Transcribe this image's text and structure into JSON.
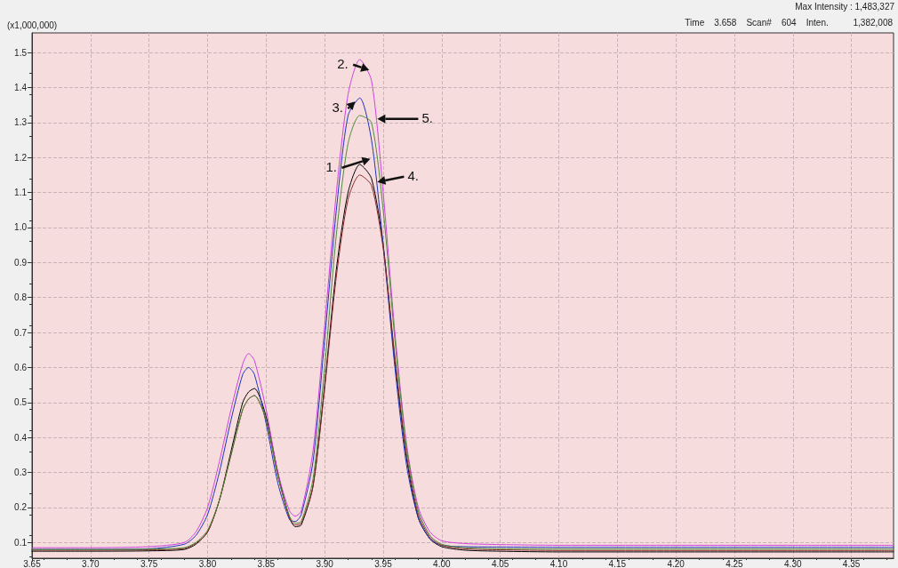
{
  "chart_data": {
    "type": "line",
    "ylabel": "(x1,000,000)",
    "x": [
      3.65,
      3.7,
      3.75,
      3.78,
      3.79,
      3.8,
      3.81,
      3.82,
      3.83,
      3.835,
      3.84,
      3.85,
      3.86,
      3.87,
      3.875,
      3.88,
      3.89,
      3.9,
      3.91,
      3.92,
      3.93,
      3.94,
      3.95,
      3.96,
      3.97,
      3.98,
      3.99,
      4.0,
      4.02,
      4.05,
      4.1,
      4.2,
      4.3,
      4.386
    ],
    "series": [
      {
        "color": "#000000",
        "values": [
          0.075,
          0.075,
          0.076,
          0.08,
          0.095,
          0.13,
          0.22,
          0.36,
          0.5,
          0.53,
          0.54,
          0.46,
          0.3,
          0.17,
          0.145,
          0.15,
          0.26,
          0.55,
          0.88,
          1.1,
          1.18,
          1.14,
          0.95,
          0.62,
          0.34,
          0.17,
          0.11,
          0.088,
          0.078,
          0.075,
          0.073,
          0.073,
          0.073,
          0.073
        ]
      },
      {
        "color": "#cc44dd",
        "values": [
          0.085,
          0.085,
          0.088,
          0.1,
          0.13,
          0.2,
          0.33,
          0.48,
          0.61,
          0.64,
          0.62,
          0.48,
          0.3,
          0.19,
          0.175,
          0.19,
          0.36,
          0.72,
          1.1,
          1.38,
          1.48,
          1.42,
          1.1,
          0.7,
          0.38,
          0.2,
          0.13,
          0.105,
          0.097,
          0.094,
          0.092,
          0.092,
          0.092,
          0.092
        ]
      },
      {
        "color": "#2233bb",
        "values": [
          0.08,
          0.08,
          0.082,
          0.095,
          0.12,
          0.18,
          0.3,
          0.45,
          0.58,
          0.6,
          0.58,
          0.44,
          0.27,
          0.165,
          0.16,
          0.18,
          0.33,
          0.68,
          1.05,
          1.32,
          1.37,
          1.25,
          0.95,
          0.6,
          0.32,
          0.17,
          0.11,
          0.092,
          0.088,
          0.087,
          0.086,
          0.086,
          0.086,
          0.086
        ]
      },
      {
        "color": "#8b2a2a",
        "values": [
          0.078,
          0.078,
          0.079,
          0.083,
          0.098,
          0.13,
          0.22,
          0.35,
          0.48,
          0.51,
          0.52,
          0.45,
          0.29,
          0.17,
          0.15,
          0.155,
          0.26,
          0.54,
          0.86,
          1.08,
          1.15,
          1.12,
          0.94,
          0.63,
          0.35,
          0.18,
          0.115,
          0.092,
          0.082,
          0.079,
          0.077,
          0.077,
          0.077,
          0.077
        ]
      },
      {
        "color": "#4d8a3a",
        "values": [
          0.08,
          0.08,
          0.081,
          0.085,
          0.1,
          0.135,
          0.22,
          0.35,
          0.48,
          0.51,
          0.52,
          0.45,
          0.29,
          0.175,
          0.155,
          0.16,
          0.28,
          0.6,
          0.98,
          1.24,
          1.32,
          1.3,
          1.05,
          0.68,
          0.37,
          0.19,
          0.12,
          0.095,
          0.085,
          0.082,
          0.081,
          0.081,
          0.081,
          0.081
        ]
      }
    ],
    "xlim": [
      3.65,
      4.386
    ],
    "xticks": [
      3.65,
      {
        "value": 3.7,
        "label": "3.70"
      },
      3.75,
      {
        "value": 3.8,
        "label": "3.80"
      },
      3.85,
      {
        "value": 3.9,
        "label": "3.90"
      },
      3.95,
      {
        "value": 4,
        "label": "4.00"
      },
      4.05,
      {
        "value": 4.1,
        "label": "4.10"
      },
      4.15,
      {
        "value": 4.2,
        "label": "4.20"
      },
      4.25,
      {
        "value": 4.3,
        "label": "4.30"
      },
      4.35
    ],
    "ylim": [
      0.055,
      1.556
    ],
    "yticks": [
      0.1,
      0.2,
      0.3,
      0.4,
      0.5,
      0.6,
      0.7,
      0.8,
      0.9,
      {
        "value": 1,
        "label": "1.0"
      },
      1.1,
      1.2,
      1.3,
      1.4,
      1.5
    ],
    "grid": true,
    "marker": "none",
    "line_style": "solid",
    "annotations": [
      "Max Intensity : 1,483,327",
      "Time    3.658    Scan#    604    Inten.          1,382,008",
      {
        "text": "1.",
        "x": 3.939,
        "y": 1.196
      },
      {
        "text": "2.",
        "x": 3.938,
        "y": 1.45
      },
      {
        "text": "3.",
        "x": 3.926,
        "y": 1.36
      },
      {
        "text": "4.",
        "x": 3.945,
        "y": 1.13
      },
      {
        "text": "5.",
        "x": 3.945,
        "y": 1.31
      }
    ]
  }
}
